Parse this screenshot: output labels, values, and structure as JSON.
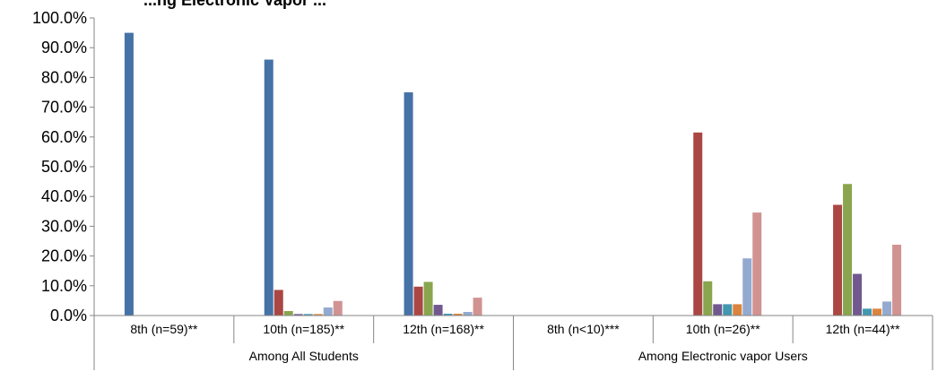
{
  "chart_data": {
    "type": "bar",
    "title": "...ng Electronic Vapor ...",
    "ylim": [
      0,
      100
    ],
    "y_ticks": [
      "0.0%",
      "10.0%",
      "20.0%",
      "30.0%",
      "40.0%",
      "50.0%",
      "60.0%",
      "70.0%",
      "80.0%",
      "90.0%",
      "100.0%"
    ],
    "categories": [
      "8th (n=59)**",
      "10th (n=185)**",
      "12th (n=168)**",
      "8th (n<10)***",
      "10th (n=26)**",
      "12th (n=44)**"
    ],
    "groups": [
      {
        "label": "Among All Students",
        "span": [
          0,
          2
        ]
      },
      {
        "label": "Among Electronic vapor Users",
        "span": [
          3,
          5
        ]
      }
    ],
    "legend": "none",
    "grid": false,
    "series": [
      {
        "color": "#4572A7",
        "values": [
          95.0,
          86.0,
          75.0,
          0,
          0,
          0
        ]
      },
      {
        "color": "#AA4643",
        "values": [
          0,
          8.6,
          9.7,
          0,
          61.5,
          37.2
        ]
      },
      {
        "color": "#89A54E",
        "values": [
          0,
          1.5,
          11.3,
          0,
          11.5,
          44.2
        ]
      },
      {
        "color": "#71588F",
        "values": [
          0,
          0.5,
          3.6,
          0,
          3.8,
          14.0
        ]
      },
      {
        "color": "#4198AF",
        "values": [
          0,
          0.5,
          0.6,
          0,
          3.8,
          2.3
        ]
      },
      {
        "color": "#DB843D",
        "values": [
          0,
          0.5,
          0.6,
          0,
          3.8,
          2.3
        ]
      },
      {
        "color": "#93A9CF",
        "values": [
          0,
          2.7,
          1.2,
          0,
          19.2,
          4.7
        ]
      },
      {
        "color": "#D19392",
        "values": [
          0,
          4.9,
          6.0,
          0,
          34.6,
          23.8
        ]
      }
    ]
  }
}
